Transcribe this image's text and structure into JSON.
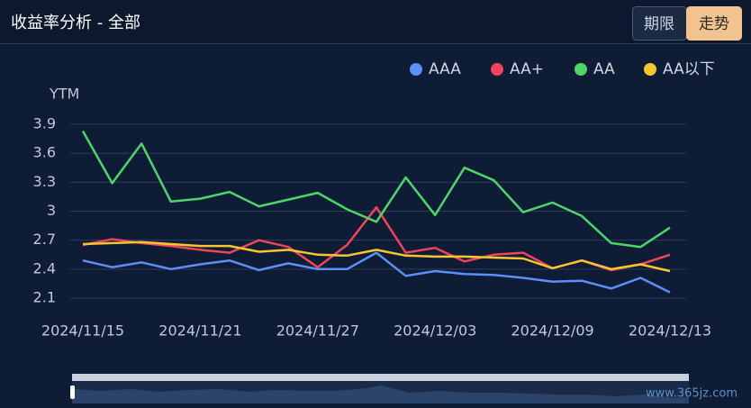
{
  "header": {
    "title": "收益率分析 - 全部",
    "buttons": [
      "期限",
      "走势"
    ]
  },
  "watermark": "www.365jz.com",
  "chart_data": {
    "type": "line",
    "y_label": "YTM",
    "categories": [
      "2024/11/15",
      null,
      null,
      null,
      "2024/11/21",
      null,
      null,
      null,
      "2024/11/27",
      null,
      null,
      null,
      "2024/12/03",
      null,
      null,
      null,
      "2024/12/09",
      null,
      null,
      null,
      "2024/12/13"
    ],
    "ylim": [
      2.1,
      3.9
    ],
    "yticks": [
      3.9,
      3.6,
      3.3,
      3,
      2.7,
      2.4,
      2.1
    ],
    "grid": true,
    "legend": "top-right",
    "series": [
      {
        "name": "AAA",
        "color": "#5b8ff9",
        "values": [
          2.49,
          2.42,
          2.47,
          2.4,
          2.45,
          2.49,
          2.39,
          2.46,
          2.4,
          2.4,
          2.57,
          2.33,
          2.38,
          2.35,
          2.34,
          2.31,
          2.27,
          2.28,
          2.2,
          2.31,
          2.16
        ]
      },
      {
        "name": "AA+",
        "color": "#f0445a",
        "values": [
          2.65,
          2.71,
          2.67,
          2.64,
          2.6,
          2.57,
          2.7,
          2.63,
          2.42,
          2.65,
          3.04,
          2.57,
          2.62,
          2.48,
          2.55,
          2.57,
          2.41,
          2.49,
          2.39,
          2.45,
          2.55
        ]
      },
      {
        "name": "AA",
        "color": "#4fd46a",
        "values": [
          3.83,
          3.29,
          3.7,
          3.1,
          3.13,
          3.2,
          3.05,
          3.12,
          3.19,
          3.02,
          2.89,
          3.35,
          2.96,
          3.45,
          3.32,
          2.99,
          3.09,
          2.95,
          2.67,
          2.63,
          2.83
        ]
      },
      {
        "name": "AA以下",
        "color": "#f7c531",
        "values": [
          2.66,
          2.67,
          2.68,
          2.66,
          2.64,
          2.64,
          2.58,
          2.6,
          2.55,
          2.54,
          2.6,
          2.54,
          2.53,
          2.53,
          2.52,
          2.51,
          2.41,
          2.49,
          2.4,
          2.45,
          2.38
        ]
      }
    ]
  }
}
